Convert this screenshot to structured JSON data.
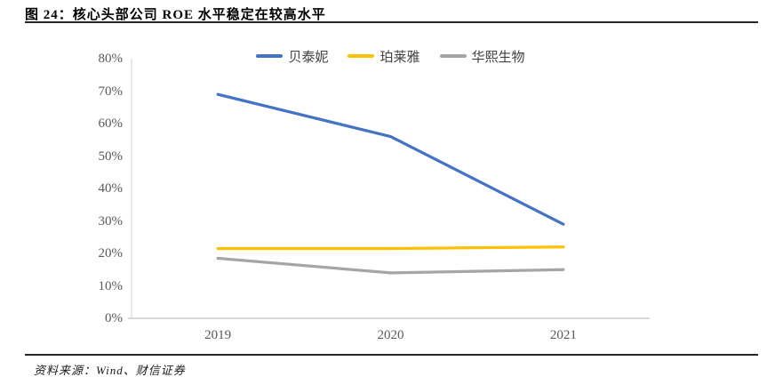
{
  "figure": {
    "title": "图 24：核心头部公司 ROE 水平稳定在较高水平",
    "source": "资料来源：Wind、财信证券"
  },
  "chart_data": {
    "type": "line",
    "title": "核心头部公司 ROE 水平稳定在较高水平",
    "categories": [
      "2019",
      "2020",
      "2021"
    ],
    "series": [
      {
        "name": "贝泰妮",
        "color": "#4472C4",
        "values": [
          69,
          56,
          29
        ]
      },
      {
        "name": "珀莱雅",
        "color": "#FFC000",
        "values": [
          21.5,
          21.5,
          22
        ]
      },
      {
        "name": "华熙生物",
        "color": "#A5A5A5",
        "values": [
          18.5,
          14,
          15
        ]
      }
    ],
    "xlabel": "",
    "ylabel": "",
    "ylim": [
      0,
      80
    ],
    "ytick_step": 10,
    "ytick_suffix": "%",
    "yticks": [
      "0%",
      "10%",
      "20%",
      "30%",
      "40%",
      "50%",
      "60%",
      "70%",
      "80%"
    ],
    "grid": false,
    "legend_position": "top-center"
  },
  "colors": {
    "axis_line": "#D9D9D9",
    "tick_text": "#595959",
    "legend_text": "#404040",
    "title_text": "#000000",
    "rule": "#262626"
  }
}
